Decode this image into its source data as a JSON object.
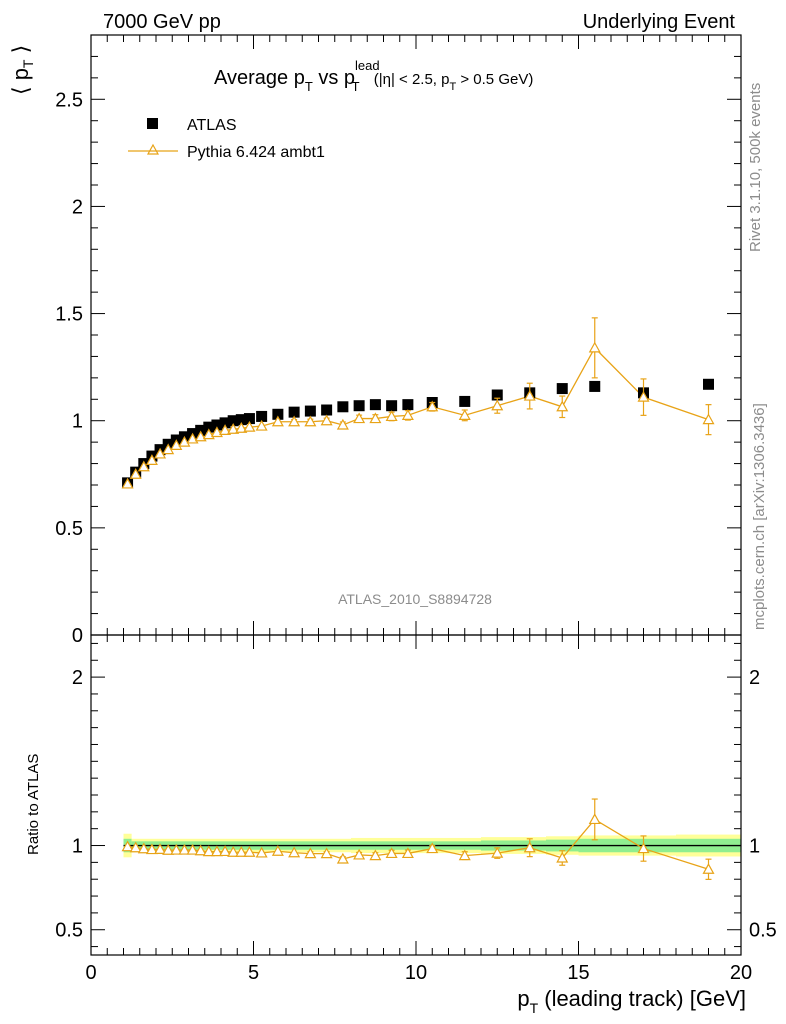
{
  "header": {
    "left": "7000 GeV pp",
    "right": "Underlying Event"
  },
  "side_text": {
    "rivet": "Rivet 3.1.10,  500k events",
    "mcplots": "mcplots.cern.ch [arXiv:1306.3436]"
  },
  "watermark": "ATLAS_2010_S8894728",
  "colors": {
    "data": "#000000",
    "mc": "#e8a317",
    "band_inner": "#90ee90",
    "band_outer": "#ffff99"
  },
  "chart_data": [
    {
      "type": "scatter",
      "title": {
        "main": "Average p",
        "sub1": "T",
        "vs": " vs p",
        "sup": "lead",
        "sub2": "T",
        "cut1": " (|η| < 2.5, p",
        "cut_sub": "T",
        "cut2": " > 0.5 GeV)"
      },
      "ylabel": {
        "open": "⟨ p",
        "sub": "T",
        "close": " ⟩"
      },
      "xlim": [
        0,
        20
      ],
      "ylim": [
        0,
        2.8
      ],
      "yticks": [
        "0.5",
        "1",
        "1.5",
        "2",
        "2.5"
      ],
      "ytick_values": [
        0.5,
        1,
        1.5,
        2,
        2.5
      ],
      "bottom_tick_label": "0",
      "legend": {
        "position": "top-left",
        "data_label": "ATLAS",
        "mc_label": "Pythia 6.424 ambt1"
      },
      "series": [
        {
          "name": "ATLAS",
          "x": [
            1.125,
            1.375,
            1.625,
            1.875,
            2.125,
            2.375,
            2.625,
            2.875,
            3.125,
            3.375,
            3.625,
            3.875,
            4.125,
            4.375,
            4.625,
            4.875,
            5.25,
            5.75,
            6.25,
            6.75,
            7.25,
            7.75,
            8.25,
            8.75,
            9.25,
            9.75,
            10.5,
            11.5,
            12.5,
            13.5,
            14.5,
            15.5,
            17.0,
            19.0
          ],
          "y": [
            0.71,
            0.76,
            0.8,
            0.835,
            0.865,
            0.89,
            0.91,
            0.925,
            0.94,
            0.955,
            0.97,
            0.98,
            0.99,
            1.0,
            1.005,
            1.01,
            1.02,
            1.03,
            1.04,
            1.045,
            1.05,
            1.065,
            1.07,
            1.075,
            1.07,
            1.075,
            1.085,
            1.09,
            1.12,
            1.13,
            1.15,
            1.16,
            1.13,
            1.17
          ]
        },
        {
          "name": "Pythia 6.424 ambt1",
          "x": [
            1.125,
            1.375,
            1.625,
            1.875,
            2.125,
            2.375,
            2.625,
            2.875,
            3.125,
            3.375,
            3.625,
            3.875,
            4.125,
            4.375,
            4.625,
            4.875,
            5.25,
            5.75,
            6.25,
            6.75,
            7.25,
            7.75,
            8.25,
            8.75,
            9.25,
            9.75,
            10.5,
            11.5,
            12.5,
            13.5,
            14.5,
            15.5,
            17.0,
            19.0
          ],
          "y": [
            0.705,
            0.75,
            0.785,
            0.815,
            0.845,
            0.865,
            0.885,
            0.9,
            0.915,
            0.925,
            0.935,
            0.945,
            0.955,
            0.96,
            0.965,
            0.97,
            0.975,
            0.995,
            0.995,
            0.995,
            1.0,
            0.98,
            1.01,
            1.01,
            1.02,
            1.025,
            1.065,
            1.025,
            1.07,
            1.115,
            1.065,
            1.34,
            1.11,
            1.005
          ],
          "yerr": [
            0.004,
            0.004,
            0.004,
            0.004,
            0.004,
            0.004,
            0.004,
            0.004,
            0.004,
            0.004,
            0.004,
            0.004,
            0.004,
            0.004,
            0.004,
            0.004,
            0.006,
            0.008,
            0.01,
            0.012,
            0.012,
            0.014,
            0.016,
            0.018,
            0.02,
            0.022,
            0.02,
            0.025,
            0.035,
            0.06,
            0.05,
            0.14,
            0.085,
            0.07
          ]
        }
      ]
    },
    {
      "type": "line",
      "ylabel": "Ratio to ATLAS",
      "xlabel": {
        "main": "p",
        "sub": "T",
        "rest": " (leading track) [GeV]"
      },
      "xlim": [
        0,
        20
      ],
      "ylim": [
        0.35,
        2.25
      ],
      "xticks": [
        "0",
        "5",
        "10",
        "15",
        "20"
      ],
      "xtick_values": [
        0,
        5,
        10,
        15,
        20
      ],
      "yticks_left": [
        "0.5",
        "1",
        "2"
      ],
      "yticks_right": [
        "0.5",
        "1",
        "2"
      ],
      "ytick_values": [
        0.5,
        1,
        2
      ],
      "band": {
        "x_edges": [
          1.0,
          1.25,
          2.0,
          5.0,
          8.0,
          10.0,
          12.0,
          13.0,
          14.0,
          15.0,
          16.0,
          18.0,
          20.0
        ],
        "inner": [
          0.04,
          0.025,
          0.025,
          0.025,
          0.025,
          0.025,
          0.03,
          0.03,
          0.035,
          0.04,
          0.04,
          0.04
        ],
        "outer": [
          0.07,
          0.04,
          0.04,
          0.04,
          0.045,
          0.045,
          0.05,
          0.05,
          0.055,
          0.06,
          0.06,
          0.065
        ]
      },
      "series": [
        {
          "name": "Pythia 6.424 ambt1",
          "x": [
            1.125,
            1.375,
            1.625,
            1.875,
            2.125,
            2.375,
            2.625,
            2.875,
            3.125,
            3.375,
            3.625,
            3.875,
            4.125,
            4.375,
            4.625,
            4.875,
            5.25,
            5.75,
            6.25,
            6.75,
            7.25,
            7.75,
            8.25,
            8.75,
            9.25,
            9.75,
            10.5,
            11.5,
            12.5,
            13.5,
            14.5,
            15.5,
            17.0,
            19.0
          ],
          "y": [
            0.993,
            0.987,
            0.981,
            0.976,
            0.977,
            0.972,
            0.973,
            0.973,
            0.973,
            0.969,
            0.964,
            0.964,
            0.965,
            0.96,
            0.96,
            0.96,
            0.956,
            0.966,
            0.957,
            0.952,
            0.952,
            0.92,
            0.944,
            0.94,
            0.953,
            0.953,
            0.982,
            0.94,
            0.955,
            0.987,
            0.926,
            1.155,
            0.982,
            0.859
          ],
          "yerr": [
            0.005,
            0.005,
            0.005,
            0.005,
            0.005,
            0.005,
            0.005,
            0.005,
            0.005,
            0.005,
            0.005,
            0.005,
            0.005,
            0.005,
            0.005,
            0.005,
            0.006,
            0.008,
            0.01,
            0.011,
            0.011,
            0.013,
            0.015,
            0.017,
            0.019,
            0.02,
            0.018,
            0.023,
            0.031,
            0.053,
            0.043,
            0.121,
            0.075,
            0.06
          ]
        }
      ]
    }
  ]
}
